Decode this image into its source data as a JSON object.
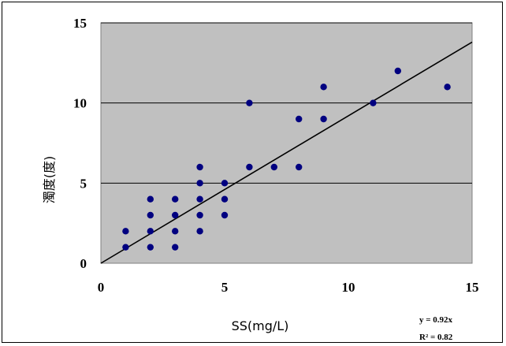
{
  "chart_data": {
    "type": "scatter",
    "xlabel": "SS(mg/L)",
    "ylabel": "濁度(度)",
    "xlim": [
      0,
      15
    ],
    "ylim": [
      0,
      15
    ],
    "x_ticks": [
      "0",
      "5",
      "10",
      "15"
    ],
    "y_ticks": [
      "0",
      "5",
      "10",
      "15"
    ],
    "grid": "horizontal",
    "background_color": "#c0c0c0",
    "point_color": "#000080",
    "trendline_color": "#000000",
    "points": [
      {
        "x": 1,
        "y": 1
      },
      {
        "x": 1,
        "y": 2
      },
      {
        "x": 2,
        "y": 1
      },
      {
        "x": 2,
        "y": 2
      },
      {
        "x": 2,
        "y": 3
      },
      {
        "x": 2,
        "y": 4
      },
      {
        "x": 3,
        "y": 1
      },
      {
        "x": 3,
        "y": 2
      },
      {
        "x": 3,
        "y": 3
      },
      {
        "x": 3,
        "y": 4
      },
      {
        "x": 4,
        "y": 2
      },
      {
        "x": 4,
        "y": 3
      },
      {
        "x": 4,
        "y": 4
      },
      {
        "x": 4,
        "y": 5
      },
      {
        "x": 4,
        "y": 6
      },
      {
        "x": 5,
        "y": 3
      },
      {
        "x": 5,
        "y": 4
      },
      {
        "x": 5,
        "y": 5
      },
      {
        "x": 6,
        "y": 6
      },
      {
        "x": 6,
        "y": 10
      },
      {
        "x": 7,
        "y": 6
      },
      {
        "x": 8,
        "y": 6
      },
      {
        "x": 8,
        "y": 9
      },
      {
        "x": 9,
        "y": 9
      },
      {
        "x": 9,
        "y": 11
      },
      {
        "x": 11,
        "y": 10
      },
      {
        "x": 12,
        "y": 12
      },
      {
        "x": 14,
        "y": 11
      }
    ],
    "trendline": {
      "slope": 0.92,
      "intercept": 0
    },
    "equation_label": "y = 0.92x",
    "r2_label": "R² = 0.82"
  }
}
